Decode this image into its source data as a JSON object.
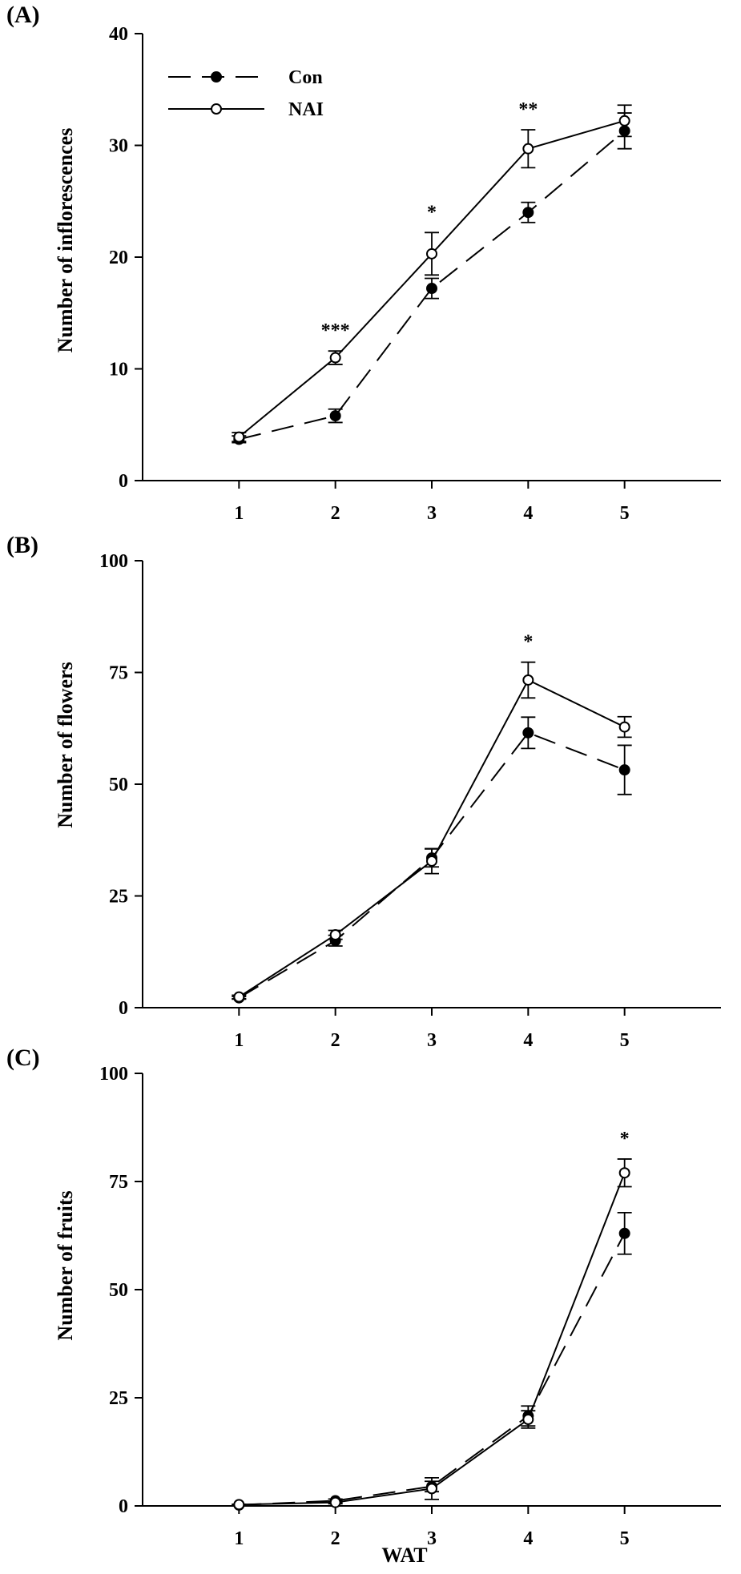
{
  "chart_data": [
    {
      "panel_label": "(A)",
      "type": "line",
      "x": [
        1,
        2,
        3,
        4,
        5
      ],
      "ylabel": "Number of inflorescences",
      "xlabel": "",
      "ylim": [
        0,
        40
      ],
      "yticks": [
        0,
        10,
        20,
        30,
        40
      ],
      "xticks": [
        1,
        2,
        3,
        4,
        5
      ],
      "legend": "top-left",
      "series": [
        {
          "name": "Con",
          "style": "dashed",
          "marker": "filled-circle",
          "values": [
            3.7,
            5.8,
            17.2,
            24.0,
            31.3
          ],
          "errors": [
            0.3,
            0.6,
            0.9,
            0.9,
            1.6
          ]
        },
        {
          "name": "NAI",
          "style": "solid",
          "marker": "open-circle",
          "values": [
            3.9,
            11.0,
            20.3,
            29.7,
            32.2
          ],
          "errors": [
            0.4,
            0.6,
            1.9,
            1.7,
            1.4
          ]
        }
      ],
      "significance": [
        {
          "x": 2,
          "label": "***"
        },
        {
          "x": 3,
          "label": "*"
        },
        {
          "x": 4,
          "label": "**"
        }
      ]
    },
    {
      "panel_label": "(B)",
      "type": "line",
      "x": [
        1,
        2,
        3,
        4,
        5
      ],
      "ylabel": "Number of flowers",
      "xlabel": "",
      "ylim": [
        0,
        100
      ],
      "yticks": [
        0,
        25,
        50,
        75,
        100
      ],
      "xticks": [
        1,
        2,
        3,
        4,
        5
      ],
      "series": [
        {
          "name": "Con",
          "style": "dashed",
          "marker": "filled-circle",
          "values": [
            2.2,
            15.0,
            33.5,
            61.5,
            53.2
          ],
          "errors": [
            0.3,
            1.2,
            2.0,
            3.5,
            5.5
          ]
        },
        {
          "name": "NAI",
          "style": "solid",
          "marker": "open-circle",
          "values": [
            2.4,
            16.3,
            32.8,
            73.3,
            62.8
          ],
          "errors": [
            0.4,
            1.0,
            2.8,
            4.0,
            2.3
          ]
        }
      ],
      "significance": [
        {
          "x": 4,
          "label": "*"
        }
      ]
    },
    {
      "panel_label": "(C)",
      "type": "line",
      "x": [
        1,
        2,
        3,
        4,
        5
      ],
      "ylabel": "Number of fruits",
      "xlabel": "WAT",
      "ylim": [
        0,
        100
      ],
      "yticks": [
        0,
        25,
        50,
        75,
        100
      ],
      "xticks": [
        1,
        2,
        3,
        4,
        5
      ],
      "series": [
        {
          "name": "Con",
          "style": "dashed",
          "marker": "filled-circle",
          "values": [
            0.2,
            1.2,
            4.5,
            20.8,
            63.0
          ],
          "errors": [
            0.1,
            0.4,
            1.2,
            2.3,
            4.8
          ]
        },
        {
          "name": "NAI",
          "style": "solid",
          "marker": "open-circle",
          "values": [
            0.3,
            0.8,
            4.0,
            20.0,
            77.0
          ],
          "errors": [
            0.1,
            0.3,
            2.5,
            2.0,
            3.2
          ]
        }
      ],
      "significance": [
        {
          "x": 5,
          "label": "*"
        }
      ]
    }
  ]
}
